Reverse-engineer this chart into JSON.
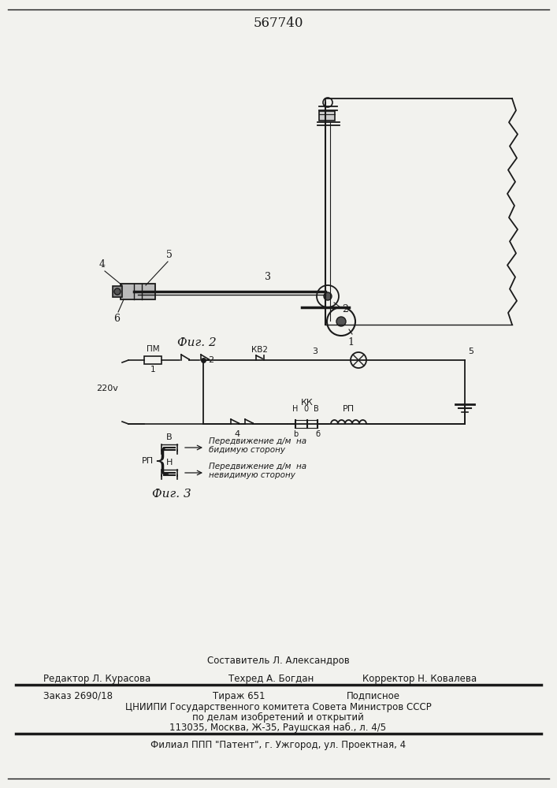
{
  "patent_number": "567740",
  "bg_color": "#f2f2ee",
  "line_color": "#1a1a1a",
  "fig2_label": "Фиг. 2",
  "fig3_label": "Фиг. 3",
  "footer": {
    "line1_center": "Составитель Л. Александров",
    "line2_left": "Редактор Л. Курасова",
    "line2_mid": "Техред А. Богдан",
    "line2_right": "Корректор Н. Ковалева",
    "line3_left": "Заказ 2690/18",
    "line3_mid": "Тираж 651",
    "line3_right": "Подписное",
    "line4": "ЦНИИПИ Государственного комитета Совета Министров СССР",
    "line5": "по делам изобретений и открытий",
    "line6": "113035, Москва, Ж-35, Раушская наб., л. 4/5",
    "line7": "Филиал ППП \"Патент\", г. Ужгород, ул. Проектная, 4"
  }
}
